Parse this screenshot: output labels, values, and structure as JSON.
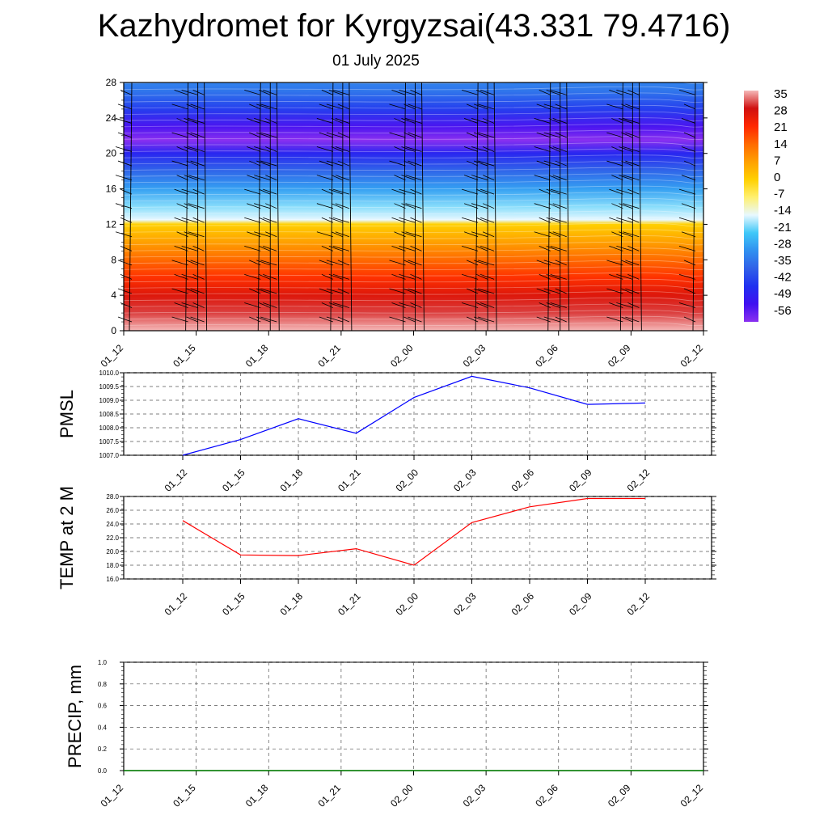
{
  "header": {
    "title": "Kazhydromet for Kyrgyzsai(43.331 79.4716)",
    "subtitle": "01 July 2025"
  },
  "chart_data": [
    {
      "type": "heatmap",
      "title": "",
      "x_ticks": [
        "01_12",
        "01_15",
        "01_18",
        "01_21",
        "02_00",
        "02_03",
        "02_06",
        "02_09",
        "02_12"
      ],
      "y_ticks": [
        "0",
        "4",
        "8",
        "12",
        "16",
        "20",
        "24",
        "28"
      ],
      "ylim": [
        0,
        28
      ],
      "temperature_profile": {
        "levels": [
          0,
          2,
          4,
          6,
          8,
          10,
          12,
          12.5,
          14,
          16,
          18,
          20,
          21.5,
          23,
          25,
          27,
          28
        ],
        "values": [
          35,
          30,
          26,
          20,
          14,
          7,
          0,
          -14,
          -18,
          -26,
          -34,
          -44,
          -56,
          -50,
          -40,
          -32,
          -30
        ]
      },
      "colorbar": {
        "labels": [
          "35",
          "28",
          "21",
          "14",
          "7",
          "0",
          "-7",
          "-14",
          "-21",
          "-28",
          "-35",
          "-42",
          "-49",
          "-56"
        ],
        "stops": [
          "#f5b8b8",
          "#d01010",
          "#ff2800",
          "#ff6a00",
          "#ffa000",
          "#ffd000",
          "#fff070",
          "#e8f8ff",
          "#40c8f8",
          "#3090f0",
          "#3060e8",
          "#2030f0",
          "#4010f0",
          "#8a30f0"
        ]
      },
      "wind_barbs": true
    },
    {
      "type": "line",
      "ylabel": "PMSL",
      "x": [
        "01_12",
        "01_15",
        "01_18",
        "01_21",
        "02_00",
        "02_03",
        "02_06",
        "02_09",
        "02_12"
      ],
      "y_ticks": [
        "1010.0",
        "1009.5",
        "1009.0",
        "1008.5",
        "1008.0",
        "1007.5",
        "1007.0"
      ],
      "ylim": [
        1007.0,
        1010.0
      ],
      "series": [
        {
          "values": [
            1007.0,
            1007.57,
            1008.33,
            1007.8,
            1009.1,
            1009.87,
            1009.45,
            1008.85,
            1008.9
          ]
        }
      ],
      "color": "#0000ff",
      "grid": true
    },
    {
      "type": "line",
      "ylabel": "TEMP at 2 M",
      "x": [
        "01_12",
        "01_15",
        "01_18",
        "01_21",
        "02_00",
        "02_03",
        "02_06",
        "02_09",
        "02_12"
      ],
      "y_ticks": [
        "28.0",
        "26.0",
        "24.0",
        "22.0",
        "20.0",
        "18.0",
        "16.0"
      ],
      "ylim": [
        16.0,
        28.0
      ],
      "series": [
        {
          "values": [
            24.5,
            19.5,
            19.4,
            20.4,
            18.0,
            24.2,
            26.5,
            27.7,
            27.7
          ]
        }
      ],
      "color": "#ff0000",
      "grid": true
    },
    {
      "type": "line",
      "ylabel": "PRECIP, mm",
      "x_ticks": [
        "01_12",
        "01_15",
        "01_18",
        "01_21",
        "02_00",
        "02_03",
        "02_06",
        "02_09",
        "02_12"
      ],
      "y_ticks": [
        "1.0",
        "0.8",
        "0.6",
        "0.4",
        "0.2",
        "0.0"
      ],
      "ylim": [
        0.0,
        1.0
      ],
      "series": [
        {
          "values": [
            0,
            0,
            0,
            0,
            0,
            0,
            0,
            0,
            0
          ]
        }
      ],
      "color": "#008000",
      "grid": true
    }
  ]
}
